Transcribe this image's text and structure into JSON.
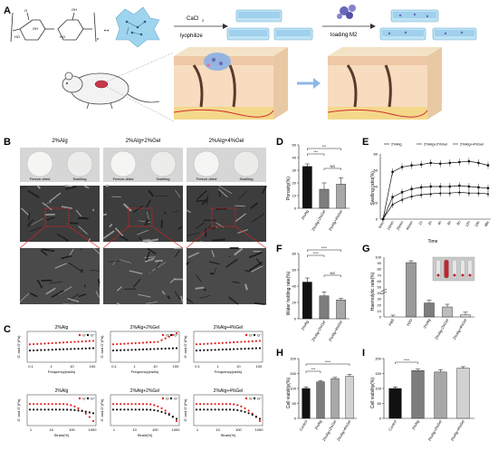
{
  "panels": {
    "A": {
      "letter": "A",
      "cacl2": "CaCl",
      "cacl2_sub": "2",
      "lyophilize": "lyophilize",
      "loading": "loading M2",
      "ho": "HO",
      "o": "O",
      "oh": "OH",
      "n": "n"
    },
    "B": {
      "letter": "B",
      "cols": [
        "2%Alg",
        "2%Alg+2%Gel",
        "2%Alg+4%Gel"
      ],
      "sub_freeze": "Freeze-dried",
      "sub_swell": "Swelling"
    },
    "C": {
      "letter": "C",
      "top_titles": [
        "2%Alg",
        "2%Alg+2%Gel",
        "2%Alg+4%Gel"
      ],
      "bottom_titles": [
        "2%Alg",
        "2%Alg+2%Gel",
        "2%Alg+4%Gel"
      ],
      "top_xlabel": "Frequency(rad/s)",
      "bottom_xlabel": "Strain(%)",
      "ylabel": "G' and G''(Pa)",
      "legend_g1": "G'",
      "legend_g2": "G''",
      "top_ticks": [
        "0.1",
        "1",
        "10",
        "100"
      ],
      "bottom_ticks": [
        "1",
        "10",
        "100",
        "1000"
      ]
    },
    "D": {
      "letter": "D",
      "ylabel": "Porosity(%)",
      "ns": "NS",
      "sig": "***"
    },
    "E": {
      "letter": "E",
      "ylabel": "Swelling ratio(%)",
      "xlabel": "Time",
      "legend": [
        "2%Alg",
        "2%Alg+2%Gel",
        "2%Alg+4%Gel"
      ],
      "xticks": [
        "0min",
        "10min",
        "20min",
        "40min",
        "1h",
        "2h",
        "4h",
        "6h",
        "8h",
        "12h",
        "24h",
        "48h"
      ],
      "yticks": [
        "0",
        "20",
        "40",
        "60",
        "80"
      ]
    },
    "F": {
      "letter": "F",
      "ylabel": "Water holding rate(%)",
      "ns": "NS",
      "sig": "****"
    },
    "G": {
      "letter": "G",
      "ylabel": "Haemolytic rate(%)",
      "yticks": [
        "0",
        "10",
        "20",
        "30",
        "40",
        "50",
        "60",
        "70",
        "80",
        "90",
        "100"
      ]
    },
    "H": {
      "letter": "H",
      "ylabel": "Cell viability(%)",
      "sig1": "***",
      "sig2": "****"
    },
    "I": {
      "letter": "I",
      "ylabel": "Cell viability(%)",
      "sig": "****"
    }
  },
  "chart_data": [
    {
      "panel": "D",
      "type": "bar",
      "categories": [
        "2%Alg",
        "2%Alg+2%Gel",
        "2%Alg+4%Gel"
      ],
      "values": [
        33,
        15,
        19
      ],
      "errors": [
        2,
        5,
        5
      ],
      "ylim": [
        0,
        50
      ],
      "yticks": [
        0,
        10,
        20,
        30,
        40,
        50
      ],
      "ylabel": "Porosity(%)",
      "colors": [
        "#111111",
        "#7d7d7d",
        "#a8a8a8"
      ]
    },
    {
      "panel": "F",
      "type": "bar",
      "categories": [
        "2%Alg",
        "2%Alg+2%Gel",
        "2%Alg+4%Gel"
      ],
      "values": [
        45,
        28,
        23
      ],
      "errors": [
        5,
        5,
        2
      ],
      "ylim": [
        0,
        80
      ],
      "yticks": [
        0,
        20,
        40,
        60,
        80
      ],
      "ylabel": "Water holding rate(%)",
      "colors": [
        "#111111",
        "#7d7d7d",
        "#a8a8a8"
      ]
    },
    {
      "panel": "G",
      "type": "bar",
      "categories": [
        "PBS",
        "H2O",
        "2%Alg",
        "2%Alg+2%Gel",
        "2%Alg+4%Gel"
      ],
      "values": [
        0,
        100,
        0.7,
        0.5,
        0.1
      ],
      "errors": [
        0.2,
        2,
        0.3,
        0.3,
        0.3
      ],
      "ylabel": "Haemolytic rate(%)",
      "colors": [
        "#111111",
        "#9a9a9a",
        "#7d7d7d",
        "#bcbcbc",
        "#dcdcdc"
      ]
    },
    {
      "panel": "H",
      "type": "bar",
      "categories": [
        "Control",
        "2%Alg",
        "2%Alg+2%Gel",
        "2%Alg+4%Gel"
      ],
      "values": [
        100,
        122,
        133,
        141
      ],
      "errors": [
        5,
        4,
        4,
        6
      ],
      "ylim": [
        0,
        200
      ],
      "yticks": [
        0,
        50,
        100,
        150,
        200
      ],
      "ylabel": "Cell viability(%)",
      "colors": [
        "#111111",
        "#7d7d7d",
        "#a8a8a8",
        "#d2d2d2"
      ]
    },
    {
      "panel": "I",
      "type": "bar",
      "categories": [
        "Control",
        "2%Alg",
        "2%Alg+2%Gel",
        "2%Alg+4%Gel"
      ],
      "values": [
        100,
        160,
        155,
        168
      ],
      "errors": [
        5,
        5,
        8,
        5
      ],
      "ylim": [
        0,
        200
      ],
      "yticks": [
        0,
        50,
        100,
        150,
        200
      ],
      "ylabel": "Cell viability(%)",
      "colors": [
        "#111111",
        "#7d7d7d",
        "#a8a8a8",
        "#d2d2d2"
      ]
    },
    {
      "panel": "E",
      "type": "line",
      "x": [
        "0min",
        "10min",
        "20min",
        "40min",
        "1h",
        "2h",
        "4h",
        "6h",
        "8h",
        "12h",
        "24h",
        "48h"
      ],
      "series": [
        {
          "name": "2%Alg",
          "values": [
            0,
            58,
            64,
            66,
            67,
            69,
            68,
            69,
            70,
            71,
            69,
            66
          ]
        },
        {
          "name": "2%Alg+2%Gel",
          "values": [
            0,
            27,
            33,
            37,
            39,
            40,
            40,
            40,
            41,
            40,
            39,
            38
          ]
        },
        {
          "name": "2%Alg+4%Gel",
          "values": [
            0,
            18,
            24,
            28,
            30,
            31,
            32,
            32,
            33,
            32,
            32,
            31
          ]
        }
      ],
      "ylim": [
        0,
        80
      ],
      "yticks": [
        0,
        20,
        40,
        60,
        80
      ],
      "xlabel": "Time",
      "ylabel": "Swelling ratio(%)"
    }
  ]
}
